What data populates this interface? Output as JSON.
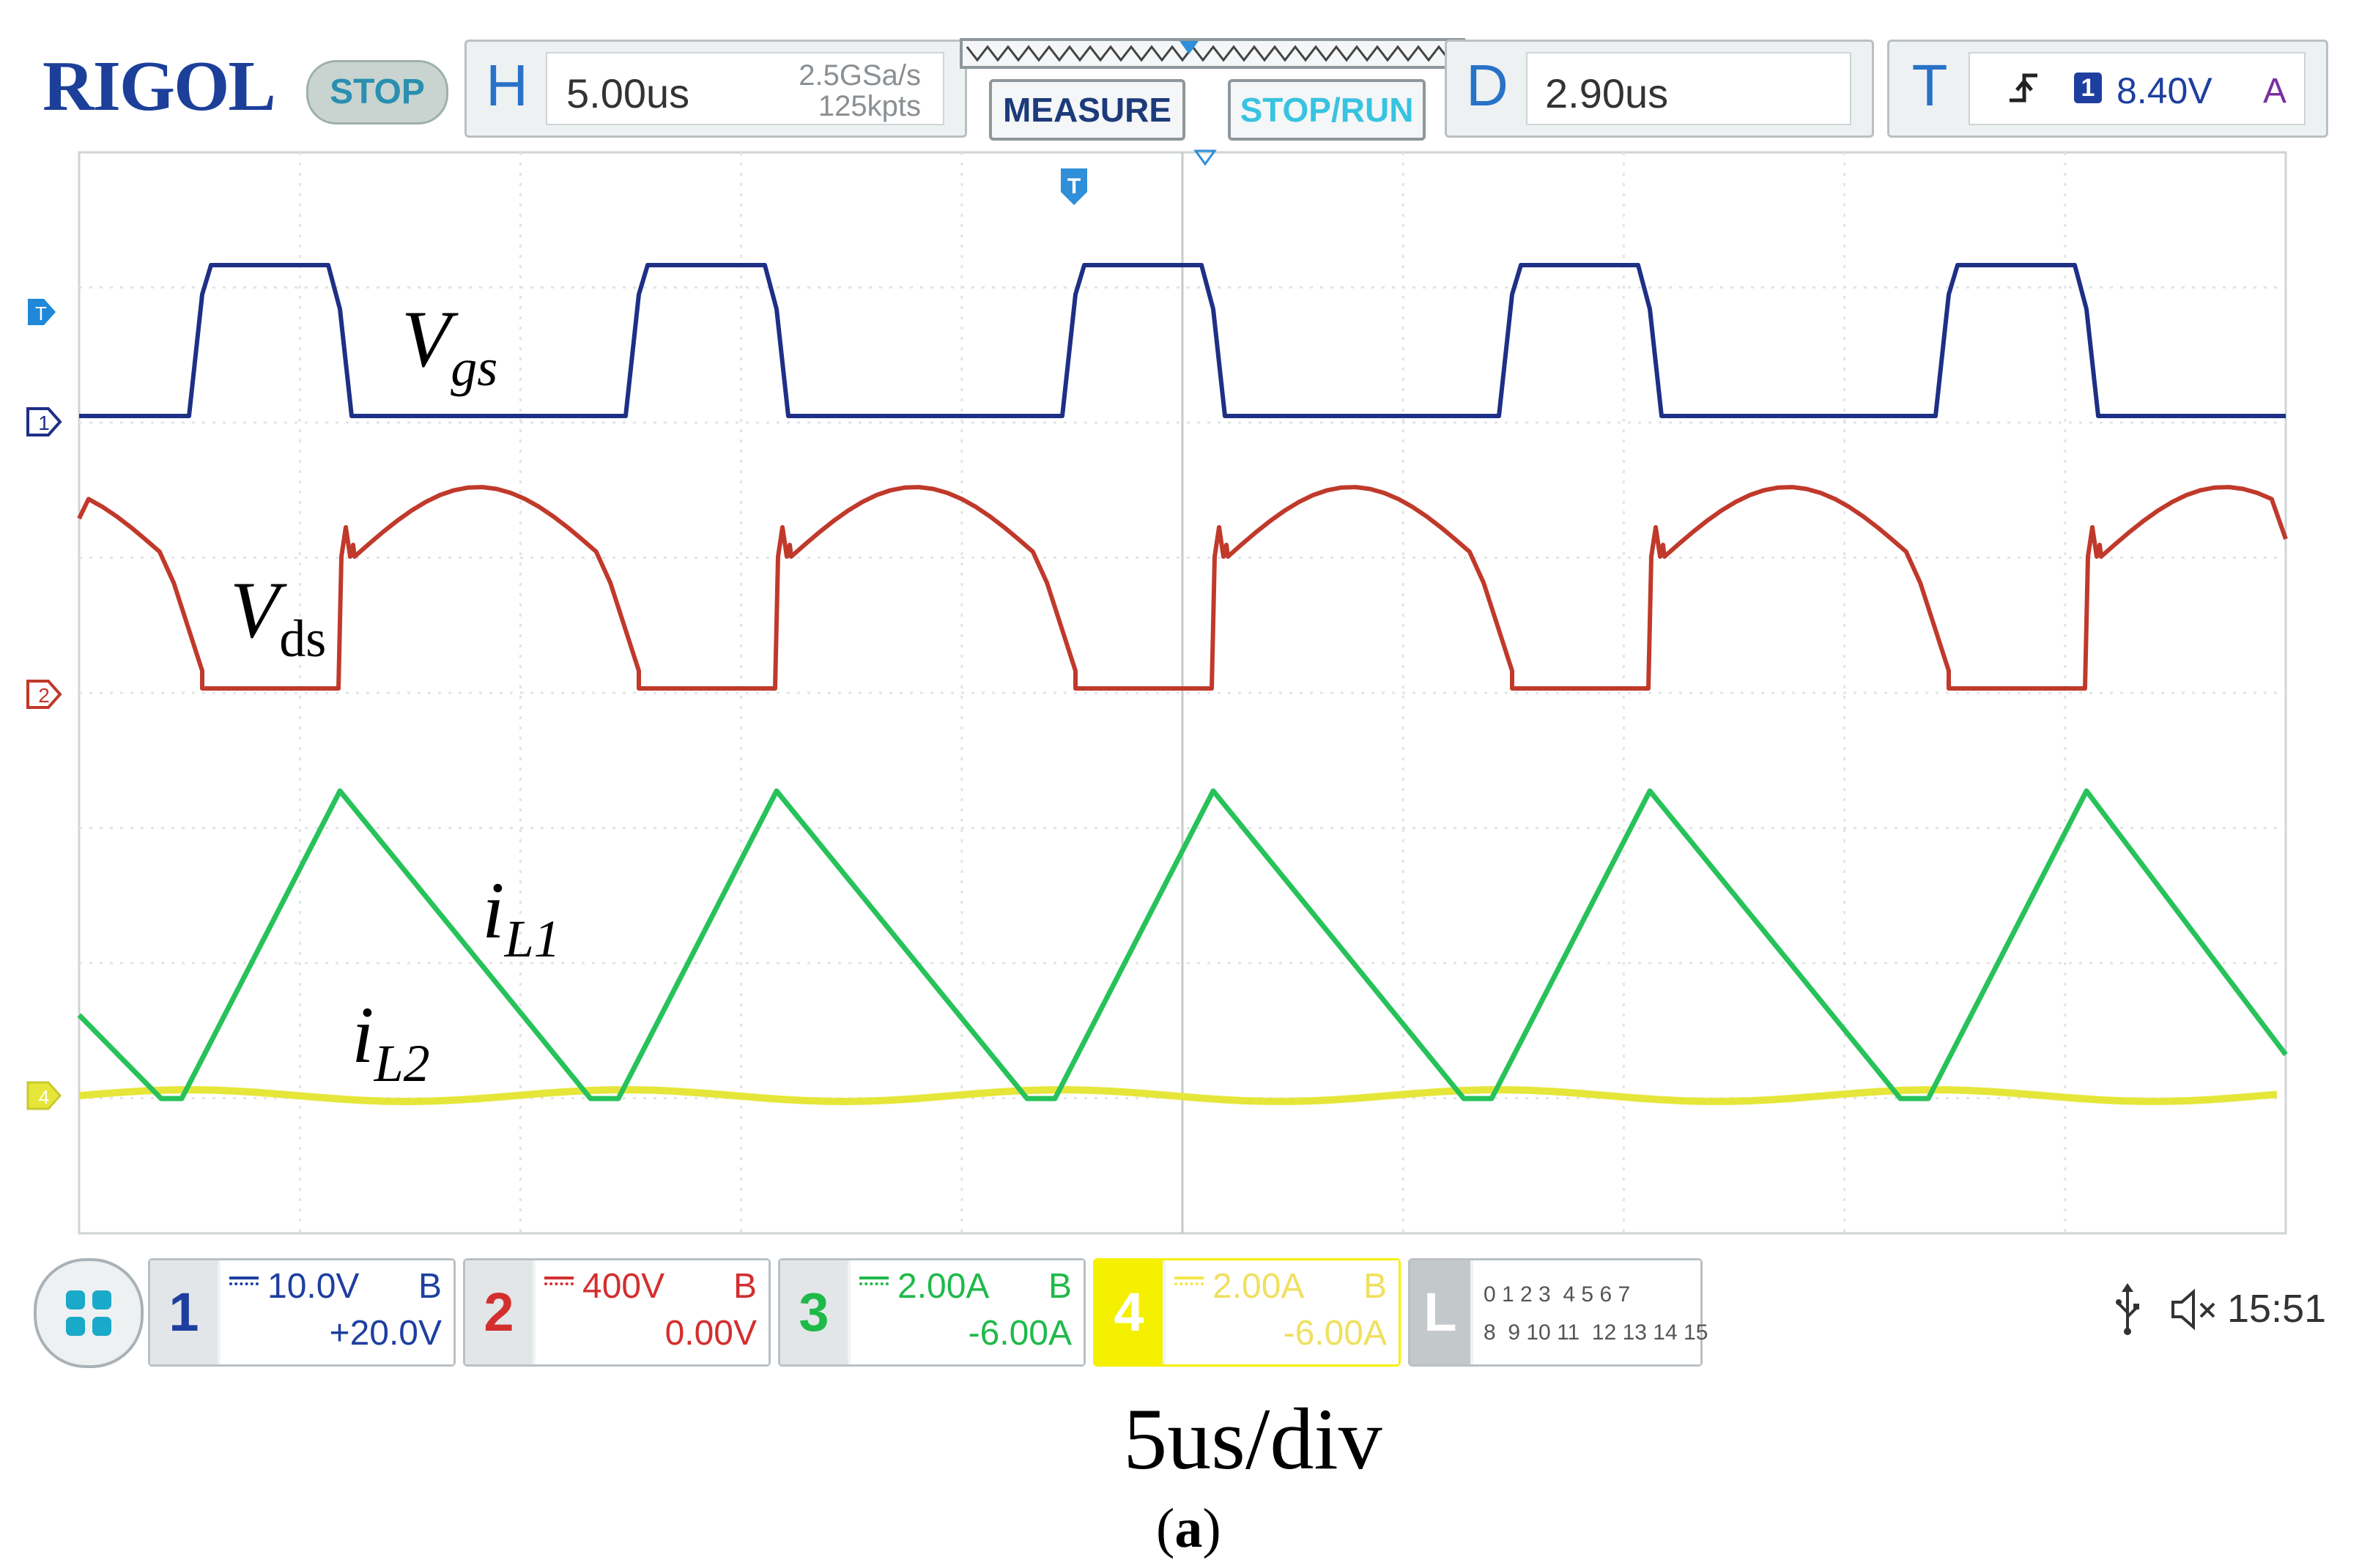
{
  "header": {
    "brand": "RIGOL",
    "run_state": "STOP",
    "horizontal": {
      "tag": "H",
      "timebase": "5.00us",
      "sample_rate": "2.5GSa/s",
      "memory_depth": "125kpts"
    },
    "measure_label": "MEASURE",
    "stoprun_label": "STOP/RUN",
    "delay": {
      "tag": "D",
      "value": "2.90us"
    },
    "trigger": {
      "tag": "T",
      "level": "8.40V",
      "source": "1",
      "mode": "A"
    }
  },
  "traces": {
    "vgs": {
      "label_main": "V",
      "label_sub": "gs",
      "marker": "1",
      "color": "#1e2f86"
    },
    "vds": {
      "label_main": "V",
      "label_sub": "ds",
      "marker": "2",
      "color": "#c0392b"
    },
    "il1": {
      "label_main": "i",
      "label_sub": "L1",
      "color": "#27c25a"
    },
    "il2": {
      "label_main": "i",
      "label_sub": "L2",
      "marker": "4",
      "color": "#e6e63a"
    }
  },
  "channels": [
    {
      "num": "1",
      "scale": "10.0V",
      "offset": "+20.0V",
      "bw": "B",
      "color": "#1e3fa0"
    },
    {
      "num": "2",
      "scale": "400V",
      "offset": "0.00V",
      "bw": "B",
      "color": "#d32f2f"
    },
    {
      "num": "3",
      "scale": "2.00A",
      "offset": "-6.00A",
      "bw": "B",
      "color": "#1fb94a"
    },
    {
      "num": "4",
      "scale": "2.00A",
      "offset": "-6.00A",
      "bw": "B",
      "color": "#f4f000"
    }
  ],
  "logic": {
    "tag": "L",
    "row1": "0 1 2 3  4 5 6 7",
    "row2": "8  9 10 11  12 13 14 15"
  },
  "status": {
    "time": "15:51"
  },
  "caption": {
    "timescale": "5us/div",
    "subfigure_paren_open": "(",
    "subfigure_letter": "a",
    "subfigure_paren_close": ")"
  },
  "icons": [
    "usb-icon",
    "mute-icon",
    "trigger-edge-icon",
    "menu-grid-icon"
  ]
}
